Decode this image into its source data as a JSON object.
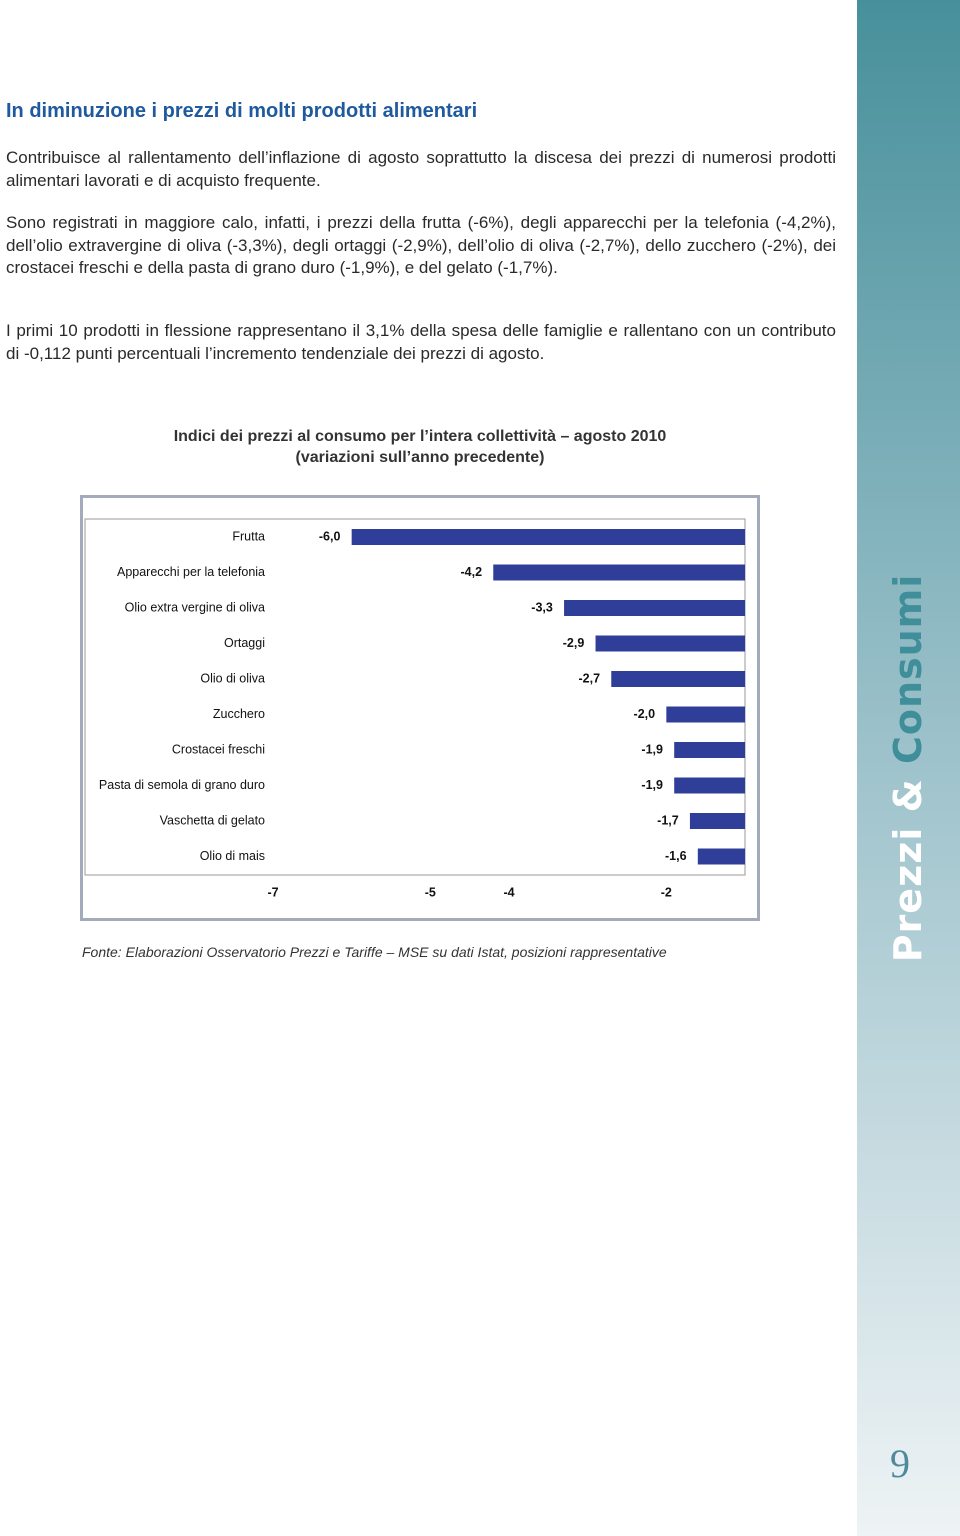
{
  "heading": "In diminuzione i prezzi di molti prodotti alimentari",
  "paragraphs": [
    "Contribuisce al rallentamento dell’inflazione di agosto soprattutto la discesa dei prezzi di numerosi prodotti alimentari lavorati e di acquisto frequente.",
    "Sono registrati in maggiore calo, infatti, i prezzi della frutta (-6%), degli apparecchi per la tele­fonia (-4,2%), dell’olio extravergine di oliva (-3,3%), degli ortaggi (-2,9%), dell’olio di oliva (-2,7%), dello zucchero (-2%), dei crostacei freschi e della pasta di grano duro (-1,9%), e del gelato (-1,7%).",
    "I primi 10 prodotti in flessione rappresentano il 3,1% della spesa delle famiglie e rallentano con un contributo di -0,112 punti percentuali l’incremento tendenziale dei prezzi di agosto."
  ],
  "chart_data": {
    "type": "hbar",
    "title": "Indici dei prezzi al consumo per l’intera collettività – agosto 2010",
    "subtitle": "(variazioni sull’anno precedente)",
    "categories": [
      "Frutta",
      "Apparecchi per la telefonia",
      "Olio extra vergine di oliva",
      "Ortaggi",
      "Olio di oliva",
      "Zucchero",
      "Crostacei freschi",
      "Pasta di semola di grano duro",
      "Vaschetta di gelato",
      "Olio di mais"
    ],
    "values": [
      -6.0,
      -4.2,
      -3.3,
      -2.9,
      -2.7,
      -2.0,
      -1.9,
      -1.9,
      -1.7,
      -1.6
    ],
    "value_labels": [
      "-6,0",
      "-4,2",
      "-3,3",
      "-2,9",
      "-2,7",
      "-2,0",
      "-1,9",
      "-1,9",
      "-1,7",
      "-1,6"
    ],
    "color": "#2f3f99",
    "xlim": [
      -7,
      -1
    ],
    "xticks": [
      -7,
      -5,
      -4,
      -2
    ],
    "grid": false
  },
  "source": "Fonte: Elaborazioni Osservatorio Prezzi e Tariffe – MSE su dati Istat, posizioni rappresentative",
  "sidebar": {
    "title_1": "Prezzi &",
    "title_2": "Consumi",
    "page_number": "9"
  }
}
